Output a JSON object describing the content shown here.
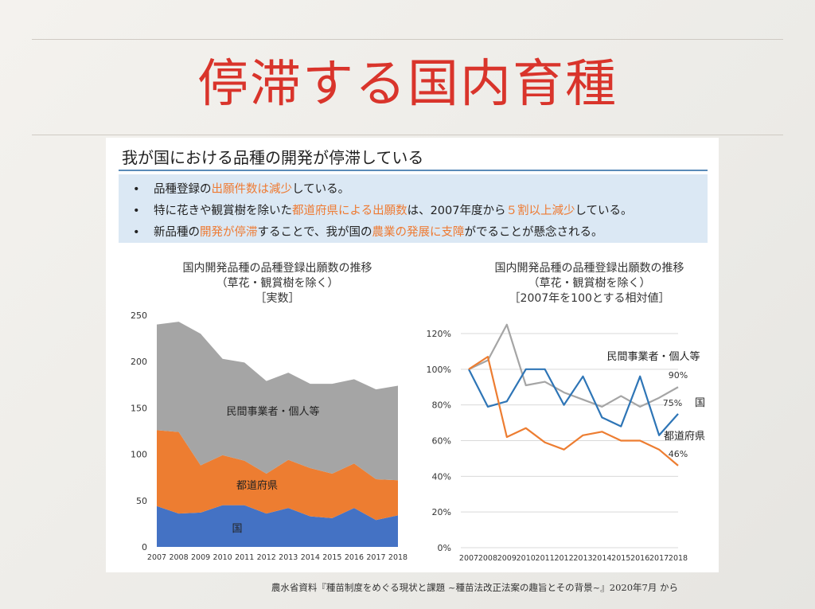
{
  "title": "停滞する国内育種",
  "panel": {
    "subtitle": "我が国における品種の開発が停滞している",
    "bullets": [
      {
        "dot": "•",
        "parts": [
          {
            "text": "品種登録の",
            "hl": false
          },
          {
            "text": "出願件数は減少",
            "hl": true
          },
          {
            "text": "している。",
            "hl": false
          }
        ]
      },
      {
        "dot": "•",
        "parts": [
          {
            "text": "特に花きや観賞樹を除いた",
            "hl": false
          },
          {
            "text": "都道府県による出願数",
            "hl": true
          },
          {
            "text": "は、2007年度から",
            "hl": false
          },
          {
            "text": "５割以上減少",
            "hl": true
          },
          {
            "text": "している。",
            "hl": false
          }
        ]
      },
      {
        "dot": "•",
        "parts": [
          {
            "text": "新品種の",
            "hl": false
          },
          {
            "text": "開発が停滞",
            "hl": true
          },
          {
            "text": "することで、我が国の",
            "hl": false
          },
          {
            "text": "農業の発展に支障",
            "hl": true
          },
          {
            "text": "がでることが懸念される。",
            "hl": false
          }
        ]
      }
    ]
  },
  "credit": "農水省資料『種苗制度をめぐる現状と課題 ~種苗法改正法案の趣旨とその背景~』2020年7月 から",
  "chart_data": [
    {
      "type": "area",
      "stacked": true,
      "title": [
        "国内開発品種の品種登録出願数の推移",
        "（草花・観賞樹を除く）",
        "［実数］"
      ],
      "categories": [
        "2007",
        "2008",
        "2009",
        "2010",
        "2011",
        "2012",
        "2013",
        "2014",
        "2015",
        "2016",
        "2017",
        "2018"
      ],
      "ylim": [
        0,
        250
      ],
      "yticks": [
        "0",
        "50",
        "100",
        "150",
        "200",
        "250"
      ],
      "series": [
        {
          "name": "国",
          "color": "#4472c4",
          "values": [
            44,
            36,
            37,
            45,
            45,
            36,
            42,
            33,
            31,
            42,
            29,
            34
          ]
        },
        {
          "name": "都道府県",
          "color": "#ed7d31",
          "values": [
            82,
            88,
            51,
            54,
            48,
            43,
            52,
            52,
            48,
            48,
            44,
            38
          ]
        },
        {
          "name": "民間事業者・個人等",
          "color": "#a5a5a5",
          "values": [
            114,
            119,
            142,
            104,
            106,
            100,
            94,
            91,
            97,
            91,
            97,
            102
          ]
        }
      ]
    },
    {
      "type": "line",
      "title": [
        "国内開発品種の品種登録出願数の推移",
        "（草花・観賞樹を除く）",
        "［2007年を100とする相対値］"
      ],
      "categories": [
        "2007",
        "2008",
        "2009",
        "2010",
        "2011",
        "2012",
        "2013",
        "2014",
        "2015",
        "2016",
        "2017",
        "2018"
      ],
      "ylim": [
        0,
        120
      ],
      "yticks": [
        "0%",
        "20%",
        "40%",
        "60%",
        "80%",
        "100%",
        "120%"
      ],
      "series": [
        {
          "name": "民間事業者・個人等",
          "color": "#a5a5a5",
          "end_label": "90%",
          "values": [
            100,
            105,
            125,
            91,
            93,
            87,
            83,
            79,
            85,
            79,
            84,
            90
          ]
        },
        {
          "name": "国",
          "color": "#2e75b6",
          "end_label": "75%",
          "values": [
            100,
            79,
            82,
            100,
            100,
            80,
            96,
            73,
            68,
            96,
            63,
            75
          ]
        },
        {
          "name": "都道府県",
          "color": "#ed7d31",
          "end_label": "46%",
          "values": [
            100,
            107,
            62,
            67,
            59,
            55,
            63,
            65,
            60,
            60,
            55,
            46
          ]
        }
      ]
    }
  ]
}
